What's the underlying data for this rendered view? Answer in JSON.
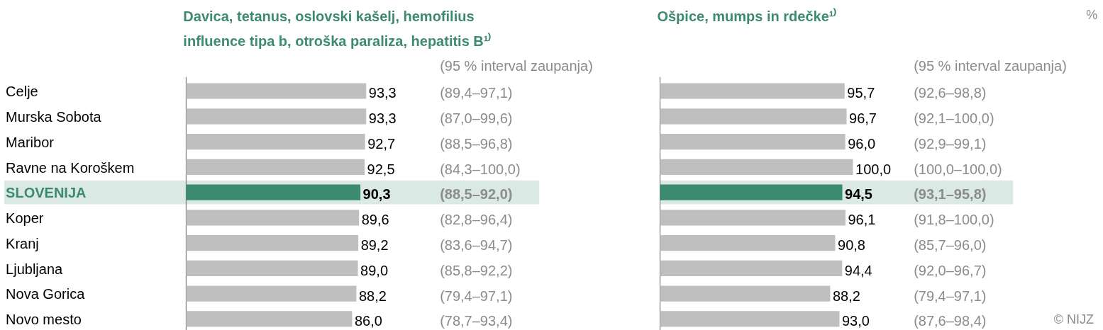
{
  "chart_data": [
    {
      "type": "bar",
      "orientation": "horizontal",
      "title": "Davica, tetanus, oslovski kašelj, hemofilius influence tipa b, otroška paraliza, hepatitis B¹⁾",
      "categories": [
        "Celje",
        "Murska Sobota",
        "Maribor",
        "Ravne na Koroškem",
        "SLOVENIJA",
        "Koper",
        "Kranj",
        "Ljubljana",
        "Nova Gorica",
        "Novo mesto"
      ],
      "values": [
        93.3,
        93.3,
        92.7,
        92.5,
        90.3,
        89.6,
        89.2,
        89.0,
        88.2,
        86.0
      ],
      "value_labels": [
        "93,3",
        "93,3",
        "92,7",
        "92,5",
        "90,3",
        "89,6",
        "89,2",
        "89,0",
        "88,2",
        "86,0"
      ],
      "colors": [
        "#bfbfbf",
        "#bfbfbf",
        "#bfbfbf",
        "#bfbfbf",
        "#3d8b6e",
        "#bfbfbf",
        "#bfbfbf",
        "#bfbfbf",
        "#bfbfbf",
        "#bfbfbf"
      ],
      "bands": [
        {
          "axis": "y",
          "from": "SLOVENIJA",
          "to": "SLOVENIJA",
          "color": "#dbe9e5"
        }
      ],
      "annotations": [
        "(95 % interval zaupanja)",
        "(89,4–97,1)",
        "(87,0–99,6)",
        "(88,5–96,8)",
        "(84,3–100,0)",
        "(88,5–92,0)",
        "(82,8–96,4)",
        "(83,6–94,7)",
        "(85,8–92,2)",
        "(79,4–97,1)",
        "(78,7–93,4)"
      ]
    },
    {
      "type": "bar",
      "orientation": "horizontal",
      "title": "Ošpice, mumps in rdečke¹⁾",
      "tick_labels": false,
      "categories": [
        "Celje",
        "Murska Sobota",
        "Maribor",
        "Ravne na Koroškem",
        "SLOVENIJA",
        "Koper",
        "Kranj",
        "Ljubljana",
        "Nova Gorica",
        "Novo mesto"
      ],
      "values": [
        95.7,
        96.7,
        96.0,
        100.0,
        94.5,
        96.1,
        90.8,
        94.4,
        88.2,
        93.0
      ],
      "value_labels": [
        "95,7",
        "96,7",
        "96,0",
        "100,0",
        "94,5",
        "96,1",
        "90,8",
        "94,4",
        "88,2",
        "93,0"
      ],
      "colors": [
        "#bfbfbf",
        "#bfbfbf",
        "#bfbfbf",
        "#bfbfbf",
        "#3d8b6e",
        "#bfbfbf",
        "#bfbfbf",
        "#bfbfbf",
        "#bfbfbf",
        "#bfbfbf"
      ],
      "bands": [
        {
          "axis": "y",
          "from": "SLOVENIJA",
          "to": "SLOVENIJA",
          "color": "#dbe9e5"
        }
      ],
      "annotations": [
        "(95 % interval zaupanja)",
        "(92,6–98,8)",
        "(92,1–100,0)",
        "(92,9–99,1)",
        "(100,0–100,0)",
        "(93,1–95,8)",
        "(91,8–100,0)",
        "(85,7–96,0)",
        "(92,0–96,7)",
        "(79,4–97,1)",
        "(87,6–98,4)",
        "© NIJZ",
        "%"
      ]
    }
  ]
}
